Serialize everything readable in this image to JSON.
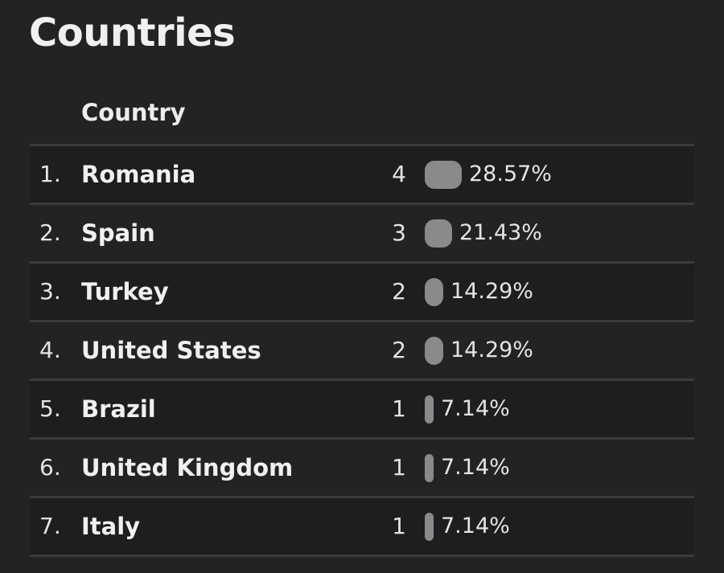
{
  "page": {
    "title": "Countries",
    "column_header": "Country"
  },
  "colors": {
    "background": "#232325",
    "row_alt": "#1e1e20",
    "divider": "#3c3c3f",
    "bar": "#8a8a8d",
    "text": "#f0f0f1"
  },
  "rows": [
    {
      "rank": "1.",
      "country": "Romania",
      "count": "4",
      "percent": "28.57%",
      "share": 0.2857
    },
    {
      "rank": "2.",
      "country": "Spain",
      "count": "3",
      "percent": "21.43%",
      "share": 0.2143
    },
    {
      "rank": "3.",
      "country": "Turkey",
      "count": "2",
      "percent": "14.29%",
      "share": 0.1429
    },
    {
      "rank": "4.",
      "country": "United States",
      "count": "2",
      "percent": "14.29%",
      "share": 0.1429
    },
    {
      "rank": "5.",
      "country": "Brazil",
      "count": "1",
      "percent": "7.14%",
      "share": 0.0714
    },
    {
      "rank": "6.",
      "country": "United Kingdom",
      "count": "1",
      "percent": "7.14%",
      "share": 0.0714
    },
    {
      "rank": "7.",
      "country": "Italy",
      "count": "1",
      "percent": "7.14%",
      "share": 0.0714
    }
  ]
}
